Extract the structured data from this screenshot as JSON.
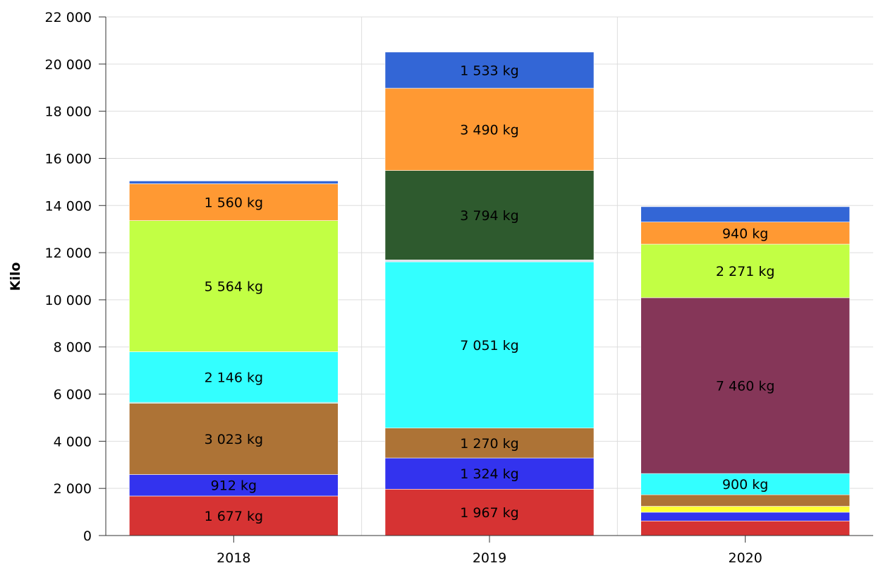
{
  "chart_data": {
    "type": "bar",
    "stacked": true,
    "xlabel": "",
    "ylabel": "Kilo",
    "ylim": [
      0,
      22000
    ],
    "y_ticks": [
      "0",
      "2 000",
      "4 000",
      "6 000",
      "8 000",
      "10 000",
      "12 000",
      "14 000",
      "16 000",
      "18 000",
      "20 000",
      "22 000"
    ],
    "grid": true,
    "categories": [
      "2018",
      "2019",
      "2020"
    ],
    "stacks": [
      {
        "category": "2018",
        "segments": [
          {
            "value": 1677,
            "label": "1 677 kg",
            "color": "#d63333"
          },
          {
            "value": 912,
            "label": "912 kg",
            "color": "#3333ee"
          },
          {
            "value": 3023,
            "label": "3 023 kg",
            "color": "#ad7336"
          },
          {
            "value": 40,
            "label": "",
            "color": "#7ad0c0"
          },
          {
            "value": 2146,
            "label": "2 146 kg",
            "color": "#33ffff"
          },
          {
            "value": 5564,
            "label": "5 564 kg",
            "color": "#c2ff44"
          },
          {
            "value": 1560,
            "label": "1 560 kg",
            "color": "#ff9933"
          },
          {
            "value": 120,
            "label": "",
            "color": "#3366d6"
          }
        ]
      },
      {
        "category": "2019",
        "segments": [
          {
            "value": 1967,
            "label": "1 967 kg",
            "color": "#d63333"
          },
          {
            "value": 1324,
            "label": "1 324 kg",
            "color": "#3333ee"
          },
          {
            "value": 1270,
            "label": "1 270 kg",
            "color": "#ad7336"
          },
          {
            "value": 7051,
            "label": "7 051 kg",
            "color": "#33ffff"
          },
          {
            "value": 80,
            "label": "",
            "color": "#d8d8e6"
          },
          {
            "value": 3794,
            "label": "3 794 kg",
            "color": "#2e5a2e"
          },
          {
            "value": 3490,
            "label": "3 490 kg",
            "color": "#ff9933"
          },
          {
            "value": 1533,
            "label": "1 533 kg",
            "color": "#3366d6"
          }
        ]
      },
      {
        "category": "2020",
        "segments": [
          {
            "value": 620,
            "label": "",
            "color": "#d63333"
          },
          {
            "value": 370,
            "label": "",
            "color": "#3333ee"
          },
          {
            "value": 250,
            "label": "",
            "color": "#ffff33"
          },
          {
            "value": 490,
            "label": "",
            "color": "#ad7336"
          },
          {
            "value": 900,
            "label": "900 kg",
            "color": "#33ffff"
          },
          {
            "value": 7460,
            "label": "7 460 kg",
            "color": "#853658"
          },
          {
            "value": 2271,
            "label": "2 271 kg",
            "color": "#c2ff44"
          },
          {
            "value": 940,
            "label": "940 kg",
            "color": "#ff9933"
          },
          {
            "value": 650,
            "label": "",
            "color": "#3366d6"
          }
        ]
      }
    ]
  }
}
